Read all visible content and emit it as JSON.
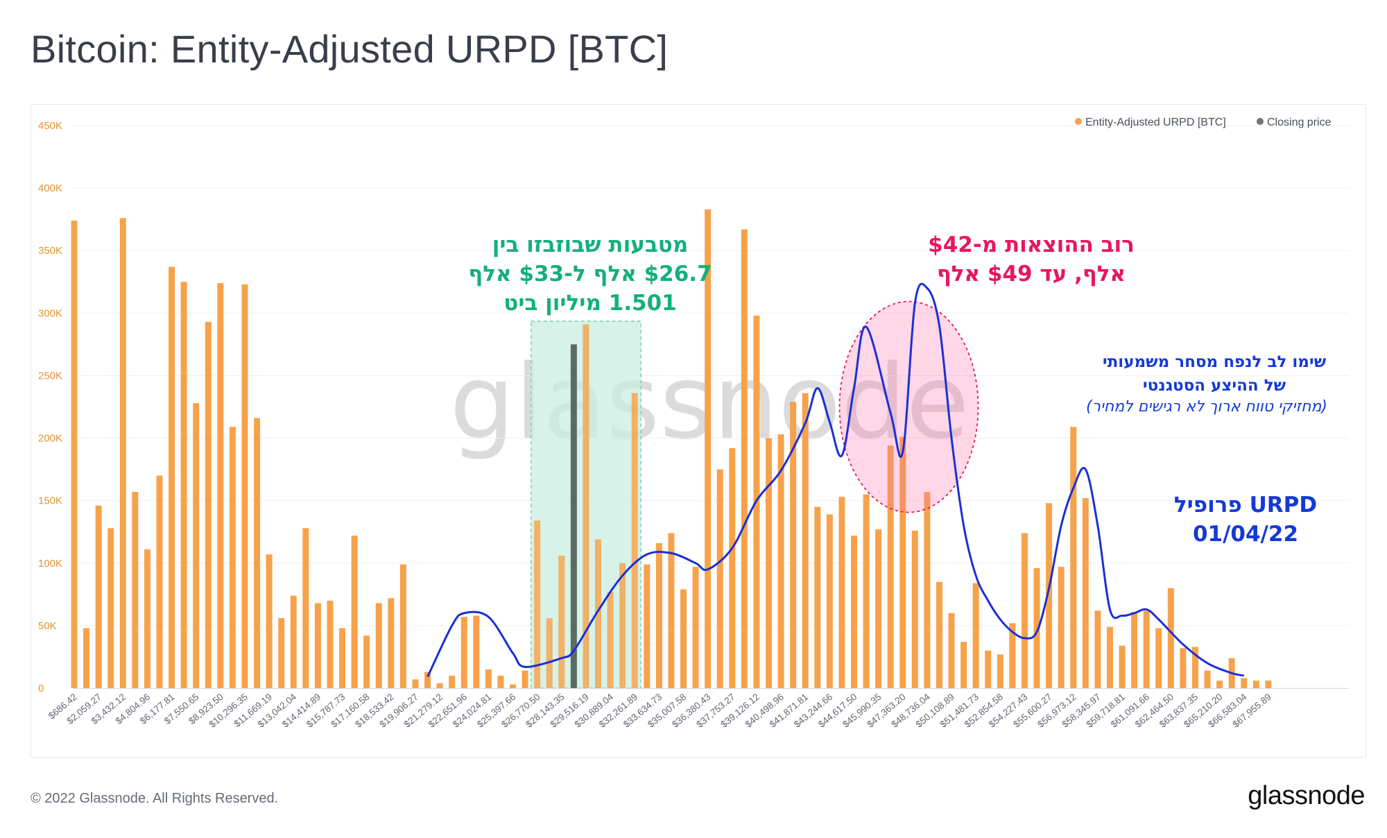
{
  "title": "Bitcoin: Entity-Adjusted URPD [BTC]",
  "footer": {
    "copyright": "© 2022 Glassnode. All Rights Reserved.",
    "logo": "glassnode"
  },
  "watermark": "glassnode",
  "colors": {
    "bar": "#f7a24a",
    "closing_price": "#5c6b62",
    "line": "#1a2fd6",
    "green": "#13b07c",
    "pink": "#e8165f",
    "blue": "#1439d6"
  },
  "legend": [
    {
      "label": "Entity-Adjusted URPD [BTC]",
      "color": "#f7a24a"
    },
    {
      "label": "Closing price",
      "color": "#737373"
    }
  ],
  "annotations": {
    "green": [
      "מטבעות שבוזבזו בין",
      "$26.7 אלף ל-$33 אלף",
      "1.501 מיליון ביט"
    ],
    "pink": [
      "רוב ההוצאות מ-$42",
      "אלף, עד $49 אלף"
    ],
    "blue_right": [
      "שימו לב לנפח מסחר משמעותי",
      "של ההיצע הסטגנטי"
    ],
    "blue_right_italic": "(מחזיקי טווח ארוך לא רגישים למחיר)",
    "profile": [
      "URPD פרופיל",
      "01/04/22"
    ]
  },
  "chart_data": {
    "type": "bar",
    "title": "Bitcoin: Entity-Adjusted URPD [BTC]",
    "ylim": [
      0,
      450000
    ],
    "y_ticks": [
      "0",
      "50K",
      "100K",
      "150K",
      "200K",
      "250K",
      "300K",
      "350K",
      "400K",
      "450K"
    ],
    "y_tick_values": [
      0,
      50000,
      100000,
      150000,
      200000,
      250000,
      300000,
      350000,
      400000,
      450000
    ],
    "x_tick_labels": [
      "$686.42",
      "$2,059.27",
      "$3,432.12",
      "$4,804.96",
      "$6,177.81",
      "$7,550.65",
      "$8,923.50",
      "$10,296.35",
      "$11,669.19",
      "$13,042.04",
      "$14,414.89",
      "$15,787.73",
      "$17,160.58",
      "$18,533.42",
      "$19,906.27",
      "$21,279.12",
      "$22,651.96",
      "$24,024.81",
      "$25,397.66",
      "$26,770.50",
      "$28,143.35",
      "$29,516.19",
      "$30,889.04",
      "$32,261.89",
      "$33,634.73",
      "$35,007.58",
      "$36,380.43",
      "$37,753.27",
      "$39,126.12",
      "$40,498.96",
      "$41,871.81",
      "$43,244.66",
      "$44,617.50",
      "$45,990.35",
      "$47,363.20",
      "$48,736.04",
      "$50,108.89",
      "$51,481.73",
      "$52,854.58",
      "$54,227.43",
      "$55,600.27",
      "$56,973.12",
      "$58,345.97",
      "$59,718.81",
      "$61,091.66",
      "$62,464.50",
      "$63,837.35",
      "$65,210.20",
      "$66,583.04",
      "$67,955.89"
    ],
    "bar_values": [
      374000,
      48000,
      146000,
      128000,
      376000,
      157000,
      111000,
      170000,
      337000,
      325000,
      228000,
      293000,
      324000,
      209000,
      323000,
      216000,
      107000,
      56000,
      74000,
      128000,
      68000,
      70000,
      48000,
      122000,
      42000,
      68000,
      72000,
      99000,
      7000,
      13000,
      4000,
      10000,
      57000,
      58000,
      15000,
      10000,
      3000,
      14000,
      134000,
      56000,
      106000,
      275000,
      291000,
      119000,
      77000,
      100000,
      236000,
      99000,
      116000,
      124000,
      79000,
      97000,
      383000,
      175000,
      192000,
      367000,
      298000,
      200000,
      203000,
      229000,
      236000,
      145000,
      139000,
      153000,
      122000,
      155000,
      127000,
      194000,
      201000,
      126000,
      157000,
      85000,
      60000,
      37000,
      84000,
      30000,
      27000,
      52000,
      124000,
      96000,
      148000,
      97000,
      209000,
      152000,
      62000,
      49000,
      34000,
      61000,
      62000,
      48000,
      80000,
      32000,
      33000,
      14000,
      6000,
      24000,
      8000,
      6000,
      6000
    ],
    "closing_price_bar": {
      "x": "$29,516.19",
      "value": 275000
    },
    "closing_price_bar_index": 41,
    "profile_curve": [
      [
        29,
        9000
      ],
      [
        31,
        50000
      ],
      [
        32,
        60000
      ],
      [
        34,
        57000
      ],
      [
        36,
        28000
      ],
      [
        37,
        17000
      ],
      [
        40,
        24000
      ],
      [
        41,
        30000
      ],
      [
        43,
        62000
      ],
      [
        45,
        90000
      ],
      [
        47,
        107000
      ],
      [
        49,
        108000
      ],
      [
        51,
        100000
      ],
      [
        52,
        95000
      ],
      [
        54,
        112000
      ],
      [
        56,
        150000
      ],
      [
        58,
        174000
      ],
      [
        60,
        212000
      ],
      [
        61,
        240000
      ],
      [
        62,
        213000
      ],
      [
        63,
        186000
      ],
      [
        64,
        240000
      ],
      [
        65,
        289000
      ],
      [
        67,
        220000
      ],
      [
        68,
        189000
      ],
      [
        69,
        308000
      ],
      [
        70,
        320000
      ],
      [
        71,
        290000
      ],
      [
        72,
        200000
      ],
      [
        73,
        130000
      ],
      [
        74,
        90000
      ],
      [
        75,
        70000
      ],
      [
        76,
        55000
      ],
      [
        77,
        45000
      ],
      [
        78,
        40000
      ],
      [
        79,
        45000
      ],
      [
        80,
        80000
      ],
      [
        81,
        130000
      ],
      [
        82,
        160000
      ],
      [
        83,
        175000
      ],
      [
        84,
        130000
      ],
      [
        85,
        63000
      ],
      [
        86,
        58000
      ],
      [
        87,
        60000
      ],
      [
        88,
        63000
      ],
      [
        89,
        55000
      ],
      [
        91,
        35000
      ],
      [
        93,
        20000
      ],
      [
        95,
        12000
      ],
      [
        96,
        10000
      ]
    ],
    "highlight_band": {
      "x_from": "$26,770.50",
      "x_to": "$32,261.89",
      "from_index": 38,
      "to_index": 46
    },
    "highlight_ellipse": {
      "x_from": "$41,871.81",
      "x_to": "$48,736.04",
      "center_index": 68.5,
      "center_value": 225000
    },
    "legend_position": "top-right",
    "grid": true
  }
}
